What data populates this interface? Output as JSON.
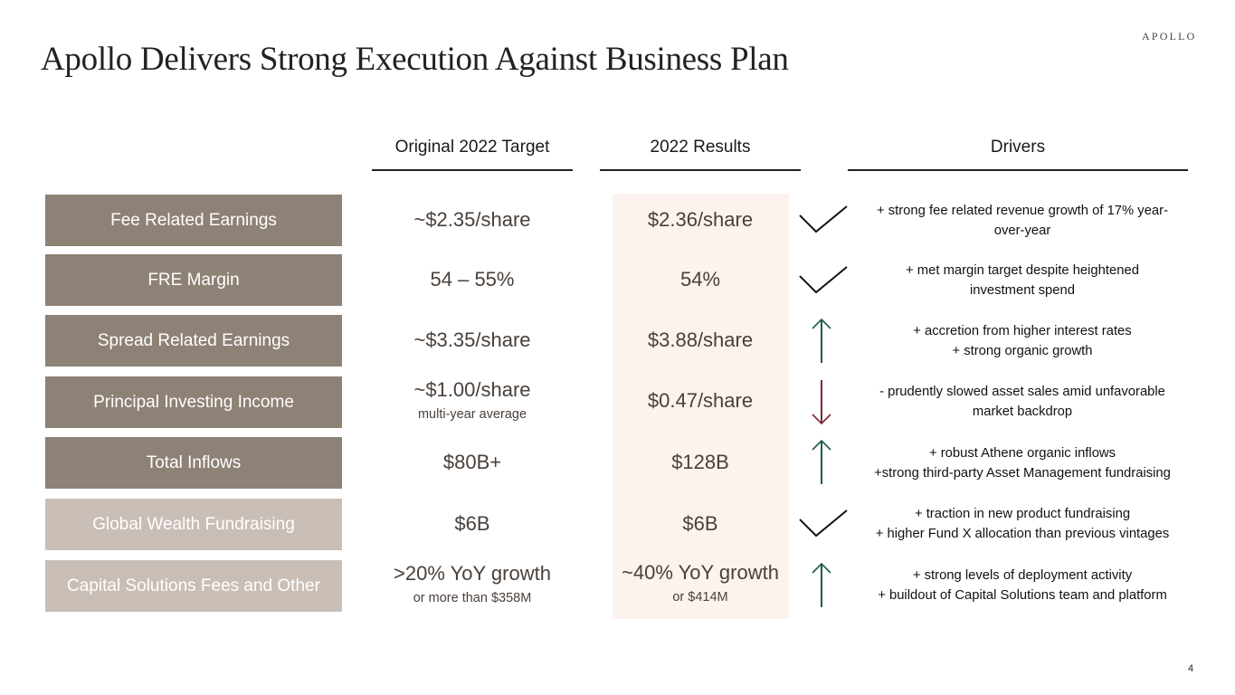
{
  "header": {
    "title": "Apollo Delivers Strong Execution Against Business Plan",
    "logo_text": "APOLLO"
  },
  "columns": {
    "target": "Original 2022 Target",
    "results": "2022 Results",
    "drivers": "Drivers"
  },
  "colors": {
    "dark_label": "#8e8175",
    "light_label": "#c9beb6",
    "results_highlight": "#fcf3ee",
    "arrow_up": "#1e5c4a",
    "arrow_down": "#7a2a2e",
    "check": "#111111"
  },
  "rows": [
    {
      "label": "Fee Related Earnings",
      "target": "~$2.35/share",
      "target_note": "",
      "result": "$2.36/share",
      "result_note": "",
      "status_icon": "check-icon",
      "drivers": [
        "+ strong fee related revenue growth of 17% year-",
        "over-year"
      ]
    },
    {
      "label": "FRE Margin",
      "target": "54 – 55%",
      "target_note": "",
      "result": "54%",
      "result_note": "",
      "status_icon": "check-icon",
      "drivers": [
        "+ met margin target despite heightened",
        "investment spend"
      ]
    },
    {
      "label": "Spread Related Earnings",
      "target": "~$3.35/share",
      "target_note": "",
      "result": "$3.88/share",
      "result_note": "",
      "status_icon": "arrow-up-icon",
      "drivers": [
        "+ accretion from higher interest rates",
        "+ strong organic growth"
      ]
    },
    {
      "label": "Principal Investing Income",
      "target": "~$1.00/share",
      "target_note": "multi-year average",
      "result": "$0.47/share",
      "result_note": "",
      "status_icon": "arrow-down-icon",
      "drivers": [
        "- prudently slowed asset sales amid unfavorable",
        "market backdrop"
      ]
    },
    {
      "label": "Total Inflows",
      "target": "$80B+",
      "target_note": "",
      "result": "$128B",
      "result_note": "",
      "status_icon": "arrow-up-icon",
      "drivers": [
        "+ robust Athene organic inflows",
        "+strong third-party Asset Management fundraising"
      ]
    },
    {
      "label": "Global Wealth Fundraising",
      "target": "$6B",
      "target_note": "",
      "result": "$6B",
      "result_note": "",
      "status_icon": "check-icon",
      "drivers": [
        "+ traction in new product fundraising",
        "+ higher Fund X allocation than previous vintages"
      ]
    },
    {
      "label": "Capital Solutions Fees and Other",
      "target": ">20% YoY growth",
      "target_note": "or more than $358M",
      "result": "~40% YoY growth",
      "result_note": "or $414M",
      "status_icon": "arrow-up-icon",
      "drivers": [
        "+ strong levels of deployment activity",
        "+ buildout of Capital Solutions team and platform"
      ]
    }
  ],
  "footer": {
    "page_number": "4"
  }
}
